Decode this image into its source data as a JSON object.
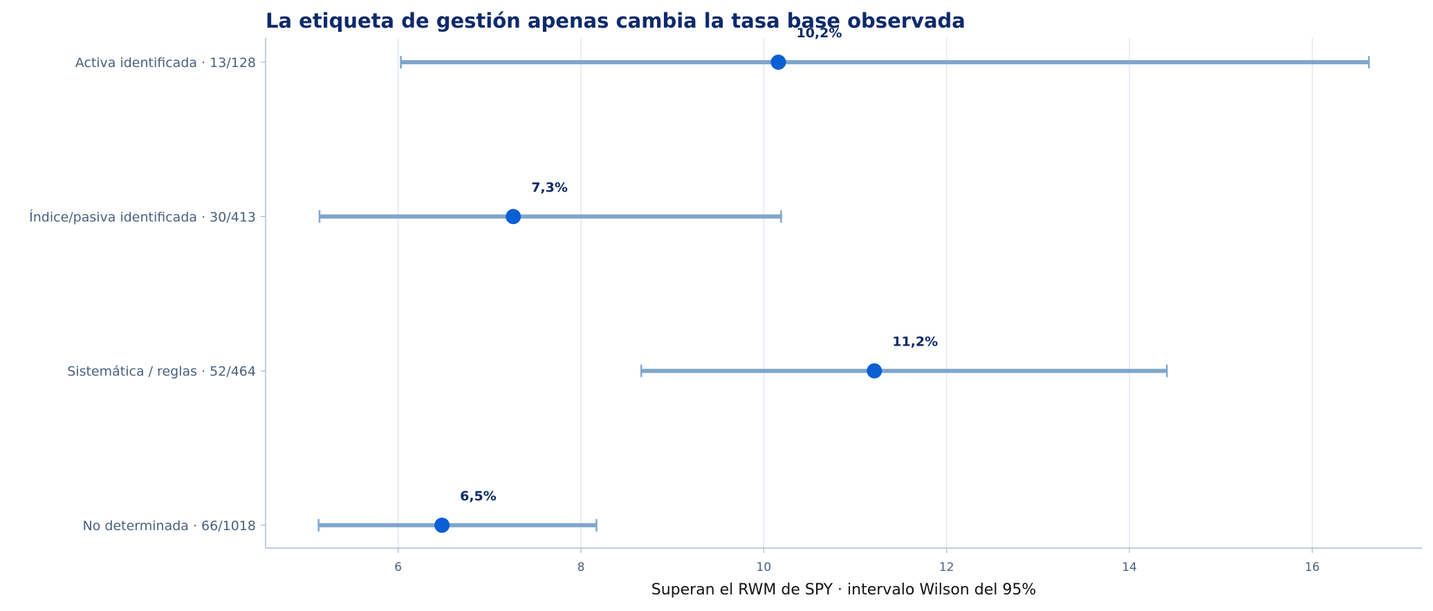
{
  "chart_data": {
    "type": "dot-interval",
    "title": "La etiqueta de gestión apenas cambia la tasa base observada",
    "xlabel": "Superan el RWM de SPY · intervalo Wilson del 95%",
    "xlim": [
      4.55,
      17.2
    ],
    "xticks": [
      6,
      8,
      10,
      12,
      14,
      16
    ],
    "xtick_labels": [
      "6",
      "8",
      "10",
      "12",
      "14",
      "16"
    ],
    "grid": "vertical",
    "categories": [
      "Activa identificada · 13/128",
      "Índice/pasiva identificada · 30/413",
      "Sistemática / reglas · 52/464",
      "No determinada · 66/1018"
    ],
    "points": [
      {
        "category": "Activa identificada · 13/128",
        "value": 10.16,
        "low": 6.03,
        "high": 16.62,
        "label": "10,2%"
      },
      {
        "category": "Índice/pasiva identificada · 30/413",
        "value": 7.26,
        "low": 5.14,
        "high": 10.19,
        "label": "7,3%"
      },
      {
        "category": "Sistemática / reglas · 52/464",
        "value": 11.21,
        "low": 8.66,
        "high": 14.41,
        "label": "11,2%"
      },
      {
        "category": "No determinada · 66/1018",
        "value": 6.48,
        "low": 5.13,
        "high": 8.17,
        "label": "6,5%"
      }
    ],
    "colors": {
      "point": "#0a5fd4",
      "interval": "#7fa6cc",
      "title": "#0d2a6b",
      "grid": "#dde5ef",
      "axis": "#a9bdd2"
    }
  }
}
